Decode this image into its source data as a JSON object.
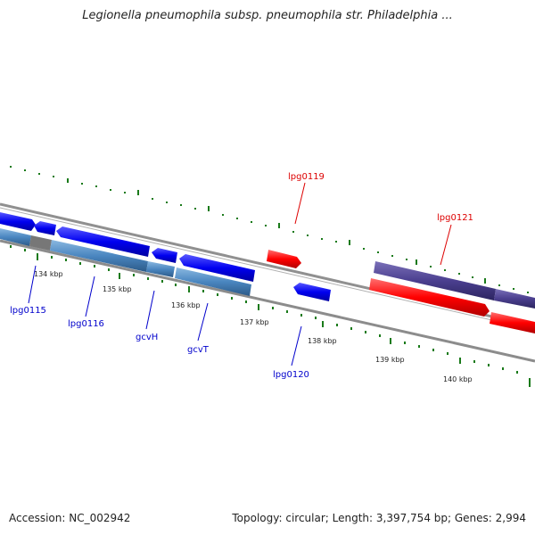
{
  "title": "Legionella pneumophila subsp. pneumophila str. Philadelphia ...",
  "footer": {
    "accession": "Accession: NC_002942",
    "topology": "Topology: circular; Length: 3,397,754 bp; Genes: 2,994"
  },
  "colors": {
    "forward_gene": "#0000ff",
    "reverse_gene": "#ff0000",
    "cds_light": "#4a86c0",
    "cds_purple": "#4b3f8f",
    "backbone": "#808080",
    "ticks": "#1a7a1a",
    "label_blue": "#0000cc",
    "label_red": "#dd0000"
  },
  "ticks": {
    "t134": "134 kbp",
    "t135": "135 kbp",
    "t136": "136 kbp",
    "t137": "137 kbp",
    "t138": "138 kbp",
    "t139": "139 kbp",
    "t140": "140 kbp"
  },
  "genes": {
    "lpg0115": "lpg0115",
    "lpg0116": "lpg0116",
    "gcvH": "gcvH",
    "gcvT": "gcvT",
    "lpg0119": "lpg0119",
    "lpg0120": "lpg0120",
    "lpg0121": "lpg0121"
  }
}
